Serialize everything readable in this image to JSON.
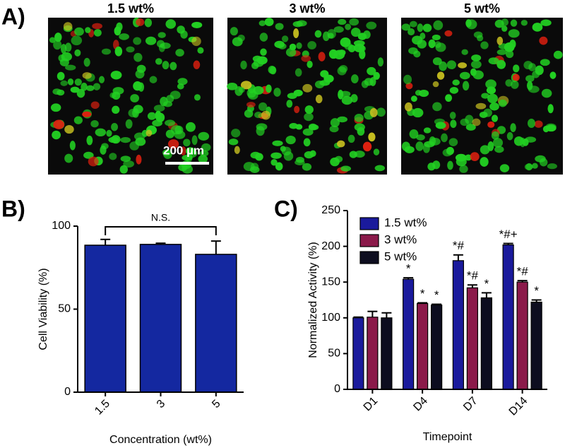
{
  "panel_labels": [
    "A)",
    "B)",
    "C)"
  ],
  "images": [
    {
      "title": "1.5 wt%"
    },
    {
      "title": "3 wt%"
    },
    {
      "title": "5 wt%"
    }
  ],
  "scale_bar": "200 µm",
  "chart_data": [
    {
      "type": "bar",
      "categories": [
        "1.5",
        "3",
        "5"
      ],
      "values": [
        88.5,
        89,
        83
      ],
      "errors": [
        3.5,
        0.7,
        8
      ],
      "color": "#1428a0",
      "ylim": [
        0,
        100
      ],
      "yticks": [
        0,
        50,
        100
      ],
      "ylabel": "Cell Viability (%)",
      "xlabel": "Concentration (wt%)",
      "annotation": "N.S."
    },
    {
      "type": "grouped-bar",
      "categories": [
        "D1",
        "D4",
        "D7",
        "D14"
      ],
      "series": [
        {
          "name": "1.5 wt%",
          "color": "#1a1a9c",
          "values": [
            100,
            154,
            180,
            202
          ],
          "errors": [
            1,
            2,
            8,
            2
          ],
          "annotations": [
            null,
            "*",
            "*#",
            "*#+"
          ]
        },
        {
          "name": "3 wt%",
          "color": "#8b1a4a",
          "values": [
            101,
            120,
            142,
            150
          ],
          "errors": [
            8,
            1,
            4,
            2
          ],
          "annotations": [
            null,
            "*",
            "*#",
            "*#"
          ]
        },
        {
          "name": "5 wt%",
          "color": "#0d0d1f",
          "values": [
            100,
            118,
            128,
            122
          ],
          "errors": [
            7,
            1,
            7,
            3
          ],
          "annotations": [
            null,
            "*",
            "*",
            "*"
          ]
        }
      ],
      "ylim": [
        0,
        250
      ],
      "yticks": [
        0,
        50,
        100,
        150,
        200,
        250
      ],
      "ylabel": "Normalized Activity (%)",
      "xlabel": "Timepoint",
      "legend": "upper-left"
    }
  ]
}
